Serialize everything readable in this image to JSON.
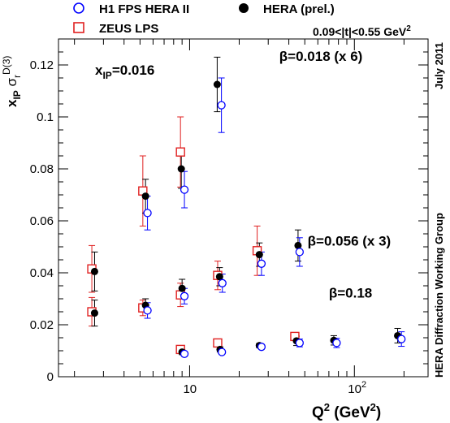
{
  "chart_data": {
    "type": "scatter",
    "xscale": "log",
    "xlim": [
      1.6,
      280
    ],
    "ylim": [
      0,
      0.13
    ],
    "xlabel_main": "Q",
    "xlabel_sup": "2",
    "xlabel_rest": " (GeV",
    "xlabel_sup2": "2",
    "xlabel_end": ")",
    "ylabel_main": "x",
    "ylabel_sub1": "IP",
    "ylabel_sigma": " σ",
    "ylabel_sub2": "r",
    "ylabel_sup": "D(3)",
    "y_ticks": [
      0,
      0.02,
      0.04,
      0.06,
      0.08,
      0.1,
      0.12
    ],
    "y_tick_labels": [
      "0",
      "0.02",
      "0.04",
      "0.06",
      "0.08",
      "0.1",
      "0.12"
    ],
    "x_tick_labels": [
      {
        "value": 10,
        "base": "10",
        "exp": ""
      },
      {
        "value": 100,
        "base": "10",
        "exp": "2"
      }
    ],
    "x_minor_ticks": [
      2,
      3,
      4,
      5,
      6,
      7,
      8,
      9,
      20,
      30,
      40,
      50,
      60,
      70,
      80,
      90,
      200
    ],
    "legend": [
      {
        "name": "H1 FPS HERA II",
        "marker": "open-circle",
        "color": "#0000ff"
      },
      {
        "name": "HERA (prel.)",
        "marker": "filled-circle",
        "color": "#000000"
      },
      {
        "name": "ZEUS LPS",
        "marker": "open-square",
        "color": "#e02020"
      }
    ],
    "cut_label_pre": "0.09<|t|<0.55 GeV",
    "cut_label_sup": "2",
    "xip_label_main": "x",
    "xip_label_sub": "IP",
    "xip_label_rest": "=0.016",
    "side_date": "July 2011",
    "side_group": "HERA Diffraction Working Group",
    "annotations": [
      {
        "text": "β=0.018 (x 6)",
        "x": 35,
        "y": 0.1215
      },
      {
        "text": "β=0.056 (x 3)",
        "x": 52,
        "y": 0.0505
      },
      {
        "text": "β=0.18",
        "x": 70,
        "y": 0.0305
      }
    ],
    "series": [
      {
        "name": "ZEUS LPS",
        "marker": "open-square",
        "color": "#e02020",
        "points": [
          {
            "x": 2.55,
            "y": 0.0415,
            "err": 0.009
          },
          {
            "x": 5.2,
            "y": 0.0715,
            "err": 0.0135
          },
          {
            "x": 8.8,
            "y": 0.0865,
            "err": 0.0135
          },
          {
            "x": 2.55,
            "y": 0.025,
            "err": 0.0055
          },
          {
            "x": 5.2,
            "y": 0.0265,
            "err": 0.003
          },
          {
            "x": 8.8,
            "y": 0.0315,
            "err": 0.0045
          },
          {
            "x": 14.8,
            "y": 0.039,
            "err": 0.0055
          },
          {
            "x": 25.7,
            "y": 0.0485,
            "err": 0.0095
          },
          {
            "x": 8.8,
            "y": 0.0105,
            "err": 0.0015
          },
          {
            "x": 14.8,
            "y": 0.013,
            "err": 0.0015
          },
          {
            "x": 43.5,
            "y": 0.0155,
            "err": 0.0015
          }
        ]
      },
      {
        "name": "HERA (prel.)",
        "marker": "filled-circle",
        "color": "#000000",
        "points": [
          {
            "x": 14.7,
            "y": 0.1125,
            "err": 0.0105
          },
          {
            "x": 8.9,
            "y": 0.08,
            "err": 0.0075
          },
          {
            "x": 5.4,
            "y": 0.0695,
            "err": 0.0065
          },
          {
            "x": 2.65,
            "y": 0.0405,
            "err": 0.0075
          },
          {
            "x": 2.65,
            "y": 0.0245,
            "err": 0.005
          },
          {
            "x": 5.4,
            "y": 0.0275,
            "err": 0.0025
          },
          {
            "x": 9.0,
            "y": 0.034,
            "err": 0.0035
          },
          {
            "x": 15.2,
            "y": 0.0385,
            "err": 0.0035
          },
          {
            "x": 26.5,
            "y": 0.047,
            "err": 0.0045
          },
          {
            "x": 45.5,
            "y": 0.0505,
            "err": 0.006
          },
          {
            "x": 9.0,
            "y": 0.0095,
            "err": 0.001
          },
          {
            "x": 15.3,
            "y": 0.0105,
            "err": 0.001
          },
          {
            "x": 26.5,
            "y": 0.012,
            "err": 0.0008
          },
          {
            "x": 44.5,
            "y": 0.0138,
            "err": 0.0018
          },
          {
            "x": 75,
            "y": 0.014,
            "err": 0.0018
          },
          {
            "x": 183,
            "y": 0.0158,
            "err": 0.0028
          }
        ]
      },
      {
        "name": "H1 FPS HERA II",
        "marker": "open-circle",
        "color": "#0000ff",
        "points": [
          {
            "x": 15.6,
            "y": 0.1045,
            "err": 0.0105
          },
          {
            "x": 9.3,
            "y": 0.072,
            "err": 0.007
          },
          {
            "x": 5.55,
            "y": 0.063,
            "err": 0.0065
          },
          {
            "x": 5.55,
            "y": 0.0255,
            "err": 0.003
          },
          {
            "x": 9.3,
            "y": 0.031,
            "err": 0.003
          },
          {
            "x": 15.8,
            "y": 0.036,
            "err": 0.0035
          },
          {
            "x": 27.3,
            "y": 0.0435,
            "err": 0.0045
          },
          {
            "x": 46.5,
            "y": 0.048,
            "err": 0.0055
          },
          {
            "x": 9.3,
            "y": 0.0088,
            "err": 0.0008
          },
          {
            "x": 15.7,
            "y": 0.0095,
            "err": 0.0008
          },
          {
            "x": 27.3,
            "y": 0.0115,
            "err": 0.0008
          },
          {
            "x": 46.5,
            "y": 0.013,
            "err": 0.0015
          },
          {
            "x": 78,
            "y": 0.013,
            "err": 0.0018
          },
          {
            "x": 193,
            "y": 0.0145,
            "err": 0.0028
          }
        ]
      }
    ]
  }
}
